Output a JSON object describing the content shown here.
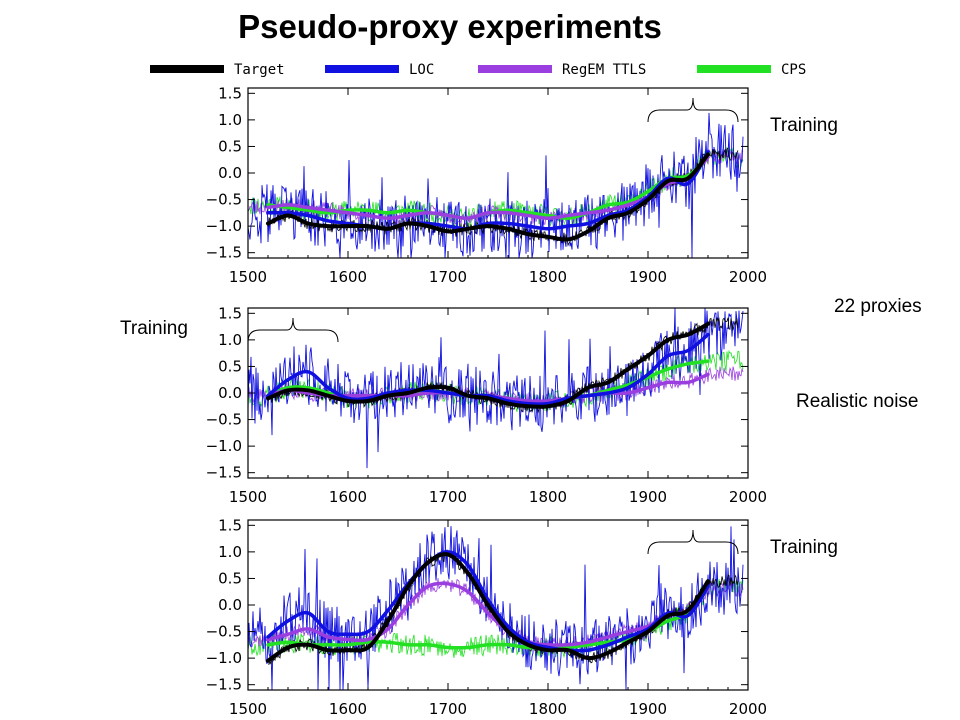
{
  "title": "Pseudo-proxy experiments",
  "side_text": {
    "proxies": "22 proxies",
    "noise": "Realistic noise"
  },
  "colors": {
    "Target": "#000000",
    "LOC": "#1010e0",
    "RegEM TTLS": "#9a3ee0",
    "CPS": "#22e022"
  },
  "chart_data": [
    {
      "type": "line",
      "panel": "top",
      "training_label": "Training",
      "training_period": [
        1900,
        1990
      ],
      "xlim": [
        1500,
        2000
      ],
      "ylim": [
        -1.6,
        1.6
      ],
      "x_ticks": [
        "1500",
        "1600",
        "1700",
        "1800",
        "1900",
        "2000"
      ],
      "y_ticks": [
        "1.5",
        "1.0",
        "0.5",
        "0.0",
        "−0.5",
        "−1.0",
        "−1.5"
      ],
      "x": [
        1520,
        1540,
        1560,
        1580,
        1600,
        1620,
        1640,
        1660,
        1680,
        1700,
        1720,
        1740,
        1760,
        1780,
        1800,
        1820,
        1840,
        1860,
        1880,
        1900,
        1920,
        1940,
        1960
      ],
      "series": [
        {
          "name": "Target",
          "values": [
            -0.95,
            -0.8,
            -0.95,
            -1.0,
            -1.0,
            -1.0,
            -1.05,
            -0.95,
            -1.0,
            -1.1,
            -1.05,
            -1.0,
            -1.05,
            -1.15,
            -1.2,
            -1.25,
            -1.1,
            -0.85,
            -0.75,
            -0.5,
            -0.15,
            -0.1,
            0.35
          ]
        },
        {
          "name": "LOC",
          "values": [
            -0.75,
            -0.75,
            -0.8,
            -0.9,
            -0.95,
            -1.0,
            -1.05,
            -0.95,
            -0.95,
            -1.0,
            -1.05,
            -0.95,
            -0.95,
            -1.0,
            -1.05,
            -1.0,
            -0.95,
            -0.8,
            -0.7,
            -0.45,
            -0.1,
            -0.2,
            0.4
          ]
        },
        {
          "name": "RegEM TTLS",
          "values": [
            -0.65,
            -0.6,
            -0.65,
            -0.7,
            -0.75,
            -0.8,
            -0.85,
            -0.8,
            -0.75,
            -0.8,
            -0.85,
            -0.75,
            -0.75,
            -0.8,
            -0.85,
            -0.8,
            -0.75,
            -0.7,
            -0.6,
            -0.45,
            -0.2,
            -0.1,
            0.3
          ]
        },
        {
          "name": "CPS",
          "values": [
            -0.6,
            -0.65,
            -0.7,
            -0.75,
            -0.7,
            -0.7,
            -0.75,
            -0.7,
            -0.75,
            -0.8,
            -0.85,
            -0.75,
            -0.7,
            -0.75,
            -0.8,
            -0.85,
            -0.75,
            -0.6,
            -0.55,
            -0.35,
            -0.1,
            -0.05,
            0.3
          ]
        }
      ]
    },
    {
      "type": "line",
      "panel": "middle",
      "training_label": "Training",
      "training_period": [
        1500,
        1590
      ],
      "xlim": [
        1500,
        2000
      ],
      "ylim": [
        -1.6,
        1.6
      ],
      "x_ticks": [
        "1500",
        "1600",
        "1700",
        "1800",
        "1900",
        "2000"
      ],
      "y_ticks": [
        "1.5",
        "1.0",
        "0.5",
        "0.0",
        "−0.5",
        "−1.0",
        "−1.5"
      ],
      "x": [
        1520,
        1540,
        1560,
        1580,
        1600,
        1620,
        1640,
        1660,
        1680,
        1700,
        1720,
        1740,
        1760,
        1780,
        1800,
        1820,
        1840,
        1860,
        1880,
        1900,
        1920,
        1940,
        1960
      ],
      "series": [
        {
          "name": "Target",
          "values": [
            -0.1,
            0.05,
            0.05,
            -0.05,
            -0.15,
            -0.15,
            -0.05,
            0.0,
            0.1,
            0.1,
            -0.05,
            -0.1,
            -0.2,
            -0.25,
            -0.25,
            -0.15,
            0.1,
            0.2,
            0.45,
            0.7,
            1.0,
            1.1,
            1.3
          ]
        },
        {
          "name": "LOC",
          "values": [
            -0.05,
            0.25,
            0.4,
            0.1,
            -0.1,
            -0.1,
            0.0,
            0.05,
            0.05,
            0.0,
            -0.05,
            -0.05,
            -0.15,
            -0.2,
            -0.2,
            -0.1,
            -0.05,
            0.0,
            0.1,
            0.35,
            0.7,
            0.8,
            1.1
          ]
        },
        {
          "name": "RegEM TTLS",
          "values": [
            -0.05,
            0.05,
            0.0,
            -0.05,
            -0.05,
            -0.05,
            -0.05,
            -0.05,
            0.0,
            0.0,
            -0.05,
            -0.05,
            -0.1,
            -0.15,
            -0.15,
            -0.1,
            -0.05,
            0.0,
            0.0,
            0.1,
            0.2,
            0.2,
            0.35
          ]
        },
        {
          "name": "CPS",
          "values": [
            -0.05,
            0.1,
            0.1,
            0.0,
            -0.1,
            -0.1,
            -0.05,
            0.0,
            0.05,
            0.0,
            -0.05,
            -0.05,
            -0.15,
            -0.2,
            -0.2,
            -0.1,
            -0.05,
            0.05,
            0.15,
            0.3,
            0.45,
            0.55,
            0.6
          ]
        }
      ]
    },
    {
      "type": "line",
      "panel": "bottom",
      "training_label": "Training",
      "training_period": [
        1900,
        1990
      ],
      "xlim": [
        1500,
        2000
      ],
      "ylim": [
        -1.6,
        1.6
      ],
      "x_ticks": [
        "1500",
        "1600",
        "1700",
        "1800",
        "1900",
        "2000"
      ],
      "y_ticks": [
        "1.5",
        "1.0",
        "0.5",
        "0.0",
        "−0.5",
        "−1.0",
        "−1.5"
      ],
      "x": [
        1520,
        1540,
        1560,
        1580,
        1600,
        1620,
        1640,
        1660,
        1680,
        1700,
        1720,
        1740,
        1760,
        1780,
        1800,
        1820,
        1840,
        1860,
        1880,
        1900,
        1920,
        1940,
        1960
      ],
      "series": [
        {
          "name": "Target",
          "values": [
            -1.05,
            -0.8,
            -0.75,
            -0.85,
            -0.85,
            -0.8,
            -0.3,
            0.35,
            0.8,
            0.95,
            0.6,
            0.0,
            -0.5,
            -0.75,
            -0.85,
            -0.85,
            -1.0,
            -0.9,
            -0.7,
            -0.5,
            -0.2,
            -0.1,
            0.45
          ]
        },
        {
          "name": "LOC",
          "values": [
            -0.6,
            -0.3,
            -0.15,
            -0.5,
            -0.55,
            -0.5,
            -0.1,
            0.4,
            0.8,
            1.0,
            0.75,
            0.1,
            -0.4,
            -0.7,
            -0.8,
            -0.85,
            -0.85,
            -0.75,
            -0.6,
            -0.45,
            -0.15,
            -0.2,
            0.35
          ]
        },
        {
          "name": "RegEM TTLS",
          "values": [
            -0.65,
            -0.55,
            -0.45,
            -0.6,
            -0.65,
            -0.65,
            -0.45,
            0.0,
            0.35,
            0.4,
            0.25,
            -0.15,
            -0.5,
            -0.7,
            -0.75,
            -0.75,
            -0.7,
            -0.6,
            -0.5,
            -0.4,
            -0.2,
            -0.1,
            0.3
          ]
        },
        {
          "name": "CPS",
          "values": [
            -0.75,
            -0.7,
            -0.75,
            -0.75,
            -0.75,
            -0.7,
            -0.7,
            -0.75,
            -0.75,
            -0.8,
            -0.8,
            -0.75,
            -0.75,
            -0.8,
            -0.8,
            -0.8,
            -0.75,
            -0.7,
            -0.65,
            -0.5,
            -0.3,
            -0.15,
            0.3
          ]
        }
      ]
    }
  ]
}
